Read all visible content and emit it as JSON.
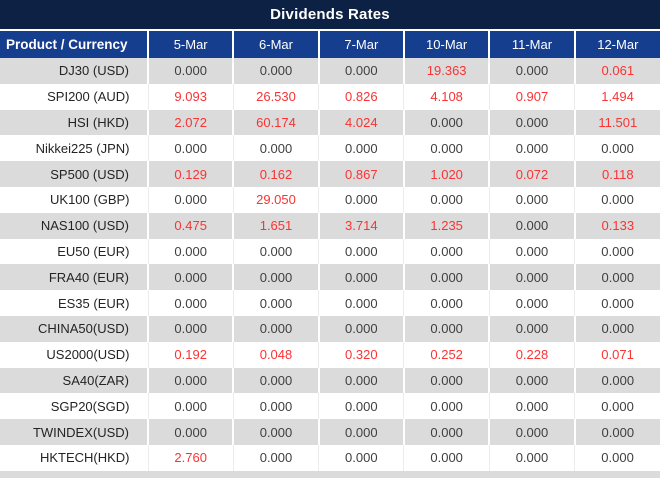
{
  "title": "Dividends Rates",
  "columns": [
    "Product / Currency",
    "5-Mar",
    "6-Mar",
    "7-Mar",
    "10-Mar",
    "11-Mar",
    "12-Mar"
  ],
  "rows": [
    {
      "product": "DJ30 (USD)",
      "values": [
        "0.000",
        "0.000",
        "0.000",
        "19.363",
        "0.000",
        "0.061"
      ]
    },
    {
      "product": "SPI200 (AUD)",
      "values": [
        "9.093",
        "26.530",
        "0.826",
        "4.108",
        "0.907",
        "1.494"
      ]
    },
    {
      "product": "HSI (HKD)",
      "values": [
        "2.072",
        "60.174",
        "4.024",
        "0.000",
        "0.000",
        "11.501"
      ]
    },
    {
      "product": "Nikkei225 (JPN)",
      "values": [
        "0.000",
        "0.000",
        "0.000",
        "0.000",
        "0.000",
        "0.000"
      ]
    },
    {
      "product": "SP500 (USD)",
      "values": [
        "0.129",
        "0.162",
        "0.867",
        "1.020",
        "0.072",
        "0.118"
      ]
    },
    {
      "product": "UK100 (GBP)",
      "values": [
        "0.000",
        "29.050",
        "0.000",
        "0.000",
        "0.000",
        "0.000"
      ]
    },
    {
      "product": "NAS100 (USD)",
      "values": [
        "0.475",
        "1.651",
        "3.714",
        "1.235",
        "0.000",
        "0.133"
      ]
    },
    {
      "product": "EU50 (EUR)",
      "values": [
        "0.000",
        "0.000",
        "0.000",
        "0.000",
        "0.000",
        "0.000"
      ]
    },
    {
      "product": "FRA40 (EUR)",
      "values": [
        "0.000",
        "0.000",
        "0.000",
        "0.000",
        "0.000",
        "0.000"
      ]
    },
    {
      "product": "ES35 (EUR)",
      "values": [
        "0.000",
        "0.000",
        "0.000",
        "0.000",
        "0.000",
        "0.000"
      ]
    },
    {
      "product": "CHINA50(USD)",
      "values": [
        "0.000",
        "0.000",
        "0.000",
        "0.000",
        "0.000",
        "0.000"
      ]
    },
    {
      "product": "US2000(USD)",
      "values": [
        "0.192",
        "0.048",
        "0.320",
        "0.252",
        "0.228",
        "0.071"
      ]
    },
    {
      "product": "SA40(ZAR)",
      "values": [
        "0.000",
        "0.000",
        "0.000",
        "0.000",
        "0.000",
        "0.000"
      ]
    },
    {
      "product": "SGP20(SGD)",
      "values": [
        "0.000",
        "0.000",
        "0.000",
        "0.000",
        "0.000",
        "0.000"
      ]
    },
    {
      "product": "TWINDEX(USD)",
      "values": [
        "0.000",
        "0.000",
        "0.000",
        "0.000",
        "0.000",
        "0.000"
      ]
    },
    {
      "product": "HKTECH(HKD)",
      "values": [
        "2.760",
        "0.000",
        "0.000",
        "0.000",
        "0.000",
        "0.000"
      ]
    }
  ],
  "colors": {
    "title_bg": "#0d2145",
    "header_bg": "#163e8f",
    "alt_row_bg": "#dbdbdb",
    "positive_value": "#fa3333",
    "zero_value": "#3f3f3f",
    "label_text": "#242424"
  }
}
